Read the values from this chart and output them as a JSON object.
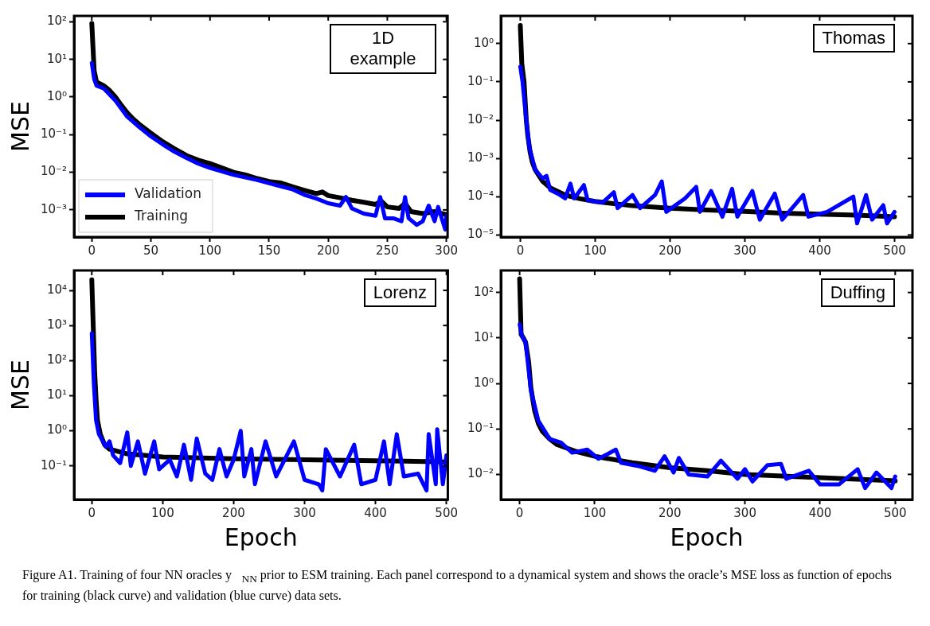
{
  "chart_data": [
    {
      "type": "line",
      "ylabel": "MSE",
      "annotations": [
        "1D example",
        "Figure A1. Training of four NN oracles y⃗$_{NN}$ prior to ESM training. Each panel correspond to a dynamical system and shows the oracle’s MSE loss as function of epochs for training (black curve) and validation (blue curve) data sets."
      ],
      "log": "y",
      "xlim": [
        -15,
        301
      ],
      "xticks": [
        0,
        50,
        100,
        150,
        200,
        250,
        300
      ],
      "ylim": [
        0.00019,
        143
      ],
      "yticks": [
        {
          "value": 100,
          "label": "10²"
        },
        {
          "value": 10,
          "label": "10¹"
        },
        {
          "value": 1,
          "label": "10⁰"
        },
        {
          "value": 0.1,
          "label": "10⁻¹"
        },
        {
          "value": 0.01,
          "label": "10⁻²"
        },
        {
          "value": 0.001,
          "label": "10⁻³"
        }
      ],
      "grid": false,
      "legend": "bottom left",
      "marker": "none",
      "line_style": "solid",
      "series": [
        {
          "name": "Validation",
          "color": "#0000ff",
          "x": [
            0,
            2,
            4,
            10,
            20,
            30,
            40,
            50,
            60,
            70,
            80,
            90,
            100,
            120,
            140,
            160,
            170,
            180,
            190,
            200,
            210,
            215,
            220,
            230,
            240,
            244,
            248,
            255,
            262,
            265,
            268,
            275,
            280,
            285,
            290,
            293,
            296,
            299,
            300
          ],
          "values": [
            8,
            3,
            2.0,
            1.7,
            0.8,
            0.3,
            0.16,
            0.09,
            0.055,
            0.035,
            0.024,
            0.017,
            0.013,
            0.0085,
            0.0062,
            0.0042,
            0.0035,
            0.0025,
            0.002,
            0.0015,
            0.0013,
            0.0022,
            0.0011,
            0.0008,
            0.0007,
            0.0022,
            0.0006,
            0.0006,
            0.0005,
            0.0022,
            0.0006,
            0.0004,
            0.0005,
            0.0013,
            0.0005,
            0.0012,
            0.0006,
            0.0003,
            0.0007
          ]
        },
        {
          "name": "Training",
          "color": "#000000",
          "x": [
            0,
            2,
            4,
            10,
            15,
            20,
            25,
            30,
            35,
            40,
            50,
            60,
            70,
            80,
            90,
            100,
            110,
            120,
            130,
            140,
            150,
            160,
            170,
            180,
            190,
            195,
            200,
            210,
            220,
            230,
            240,
            245,
            250,
            260,
            265,
            270,
            280,
            290,
            300
          ],
          "values": [
            90,
            5,
            2.5,
            2.0,
            1.5,
            1.0,
            0.6,
            0.38,
            0.26,
            0.19,
            0.11,
            0.065,
            0.042,
            0.028,
            0.021,
            0.017,
            0.013,
            0.01,
            0.0085,
            0.0068,
            0.0057,
            0.0052,
            0.0041,
            0.0033,
            0.0027,
            0.003,
            0.0024,
            0.0021,
            0.0018,
            0.0016,
            0.0014,
            0.0017,
            0.0012,
            0.0011,
            0.0015,
            0.0009,
            0.0008,
            0.0009,
            0.00075
          ]
        }
      ]
    },
    {
      "type": "line",
      "annotations": [
        "Thomas"
      ],
      "log": "y",
      "xlim": [
        -26,
        524
      ],
      "xticks": [
        0,
        100,
        200,
        300,
        400,
        500
      ],
      "ylim": [
        8.8e-06,
        5.3
      ],
      "yticks": [
        {
          "value": 1,
          "label": "10⁰"
        },
        {
          "value": 0.1,
          "label": "10⁻¹"
        },
        {
          "value": 0.01,
          "label": "10⁻²"
        },
        {
          "value": 0.001,
          "label": "10⁻³"
        },
        {
          "value": 0.0001,
          "label": "10⁻⁴"
        },
        {
          "value": 1e-05,
          "label": "10⁻⁵"
        }
      ],
      "grid": false,
      "marker": "none",
      "line_style": "solid",
      "series": [
        {
          "color": "#0000ff",
          "x": [
            0,
            3,
            8,
            12,
            20,
            30,
            35,
            40,
            50,
            60,
            67,
            72,
            85,
            90,
            110,
            125,
            130,
            150,
            160,
            180,
            189,
            195,
            220,
            235,
            240,
            255,
            270,
            283,
            290,
            310,
            320,
            340,
            350,
            378,
            385,
            410,
            445,
            450,
            462,
            470,
            485,
            490,
            500
          ],
          "values": [
            0.25,
            0.1,
            0.01,
            0.002,
            0.0005,
            0.0003,
            0.00035,
            0.00015,
            0.00012,
            9e-05,
            0.00022,
            9e-05,
            0.0002,
            8e-05,
            7e-05,
            0.00013,
            5e-05,
            0.00011,
            5e-05,
            0.00011,
            0.00025,
            4e-05,
            9e-05,
            0.00018,
            4e-05,
            0.00014,
            3e-05,
            0.00016,
            3e-05,
            0.00014,
            2.5e-05,
            0.00012,
            2.5e-05,
            0.00011,
            3e-05,
            4e-05,
            0.0001,
            2e-05,
            0.00011,
            2.5e-05,
            6e-05,
            2e-05,
            4e-05
          ]
        },
        {
          "color": "#000000",
          "x": [
            0,
            2,
            5,
            8,
            10,
            13,
            16,
            20,
            30,
            40,
            60,
            80,
            100,
            150,
            200,
            250,
            300,
            350,
            400,
            450,
            500
          ],
          "values": [
            3,
            0.3,
            0.1,
            0.01,
            0.004,
            0.0015,
            0.0008,
            0.0005,
            0.00025,
            0.00017,
            0.00011,
            8.8e-05,
            7.5e-05,
            5.8e-05,
            5e-05,
            4.5e-05,
            4.1e-05,
            3.7e-05,
            3.5e-05,
            3.3e-05,
            3e-05
          ]
        }
      ]
    },
    {
      "type": "line",
      "xlabel": "Epoch",
      "ylabel": "MSE",
      "annotations": [
        "Lorenz"
      ],
      "log": "y",
      "xlim": [
        -25,
        502
      ],
      "xticks": [
        0,
        100,
        200,
        300,
        400,
        500
      ],
      "ylim": [
        0.011,
        37000
      ],
      "yticks": [
        {
          "value": 10000,
          "label": "10⁴"
        },
        {
          "value": 1000,
          "label": "10³"
        },
        {
          "value": 100,
          "label": "10²"
        },
        {
          "value": 10,
          "label": "10¹"
        },
        {
          "value": 1,
          "label": "10⁰"
        },
        {
          "value": 0.1,
          "label": "10⁻¹"
        }
      ],
      "grid": false,
      "marker": "none",
      "line_style": "solid",
      "series": [
        {
          "color": "#0000ff",
          "x": [
            0,
            3,
            6,
            10,
            20,
            25,
            30,
            40,
            50,
            55,
            65,
            75,
            88,
            95,
            110,
            120,
            130,
            140,
            148,
            160,
            170,
            180,
            190,
            200,
            210,
            215,
            225,
            230,
            245,
            260,
            285,
            300,
            320,
            325,
            330,
            350,
            370,
            380,
            400,
            412,
            420,
            430,
            440,
            460,
            472,
            475,
            485,
            487,
            495,
            500
          ],
          "values": [
            600,
            20,
            2,
            0.8,
            0.35,
            0.5,
            0.2,
            0.12,
            0.9,
            0.1,
            0.5,
            0.06,
            0.5,
            0.08,
            0.15,
            0.05,
            0.4,
            0.04,
            0.6,
            0.06,
            0.04,
            0.3,
            0.05,
            0.15,
            1.0,
            0.05,
            0.3,
            0.03,
            0.5,
            0.05,
            0.5,
            0.04,
            0.03,
            0.02,
            0.3,
            0.05,
            0.4,
            0.03,
            0.04,
            0.5,
            0.03,
            0.8,
            0.05,
            0.06,
            0.02,
            0.8,
            0.03,
            1.1,
            0.03,
            0.2
          ]
        },
        {
          "color": "#000000",
          "x": [
            0,
            2,
            4,
            6,
            8,
            12,
            18,
            25,
            50,
            100,
            200,
            300,
            400,
            500
          ],
          "values": [
            20000,
            1000,
            50,
            8,
            2,
            0.8,
            0.4,
            0.3,
            0.22,
            0.18,
            0.16,
            0.15,
            0.14,
            0.13
          ]
        }
      ]
    },
    {
      "type": "line",
      "xlabel": "Epoch",
      "annotations": [
        "Duffing"
      ],
      "log": "y",
      "xlim": [
        -25,
        523
      ],
      "xticks": [
        0,
        100,
        200,
        300,
        400,
        500
      ],
      "ylim": [
        0.0028,
        305
      ],
      "yticks": [
        {
          "value": 100,
          "label": "10²"
        },
        {
          "value": 10,
          "label": "10¹"
        },
        {
          "value": 1,
          "label": "10⁰"
        },
        {
          "value": 0.1,
          "label": "10⁻¹"
        },
        {
          "value": 0.01,
          "label": "10⁻²"
        }
      ],
      "grid": false,
      "marker": "none",
      "line_style": "solid",
      "series": [
        {
          "color": "#0000ff",
          "x": [
            0,
            3,
            8,
            15,
            25,
            40,
            55,
            70,
            90,
            105,
            128,
            135,
            160,
            180,
            193,
            205,
            212,
            225,
            250,
            268,
            290,
            300,
            310,
            330,
            348,
            355,
            385,
            400,
            425,
            450,
            460,
            475,
            495,
            500
          ],
          "values": [
            20,
            11,
            8,
            0.7,
            0.15,
            0.06,
            0.05,
            0.03,
            0.035,
            0.022,
            0.035,
            0.018,
            0.015,
            0.012,
            0.025,
            0.011,
            0.023,
            0.01,
            0.009,
            0.02,
            0.008,
            0.013,
            0.007,
            0.016,
            0.017,
            0.008,
            0.012,
            0.006,
            0.006,
            0.013,
            0.005,
            0.011,
            0.005,
            0.009
          ]
        },
        {
          "color": "#000000",
          "x": [
            0,
            2,
            5,
            8,
            12,
            15,
            20,
            25,
            30,
            40,
            50,
            75,
            100,
            150,
            200,
            250,
            300,
            350,
            400,
            450,
            500
          ],
          "values": [
            200,
            12,
            10,
            8,
            3,
            0.8,
            0.25,
            0.13,
            0.09,
            0.06,
            0.045,
            0.032,
            0.025,
            0.018,
            0.014,
            0.012,
            0.01,
            0.0092,
            0.0085,
            0.0078,
            0.0072
          ]
        }
      ]
    }
  ]
}
